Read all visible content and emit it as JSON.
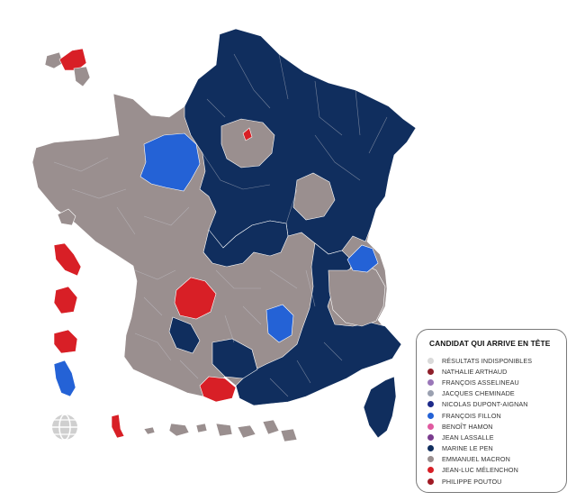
{
  "colors": {
    "macron": "#9a8f8f",
    "le_pen": "#102e5e",
    "fillon": "#2462d6",
    "melenchon": "#d81f26",
    "globe": "#cfcfcf",
    "legend_border": "#7a7a7a"
  },
  "legend": {
    "title": "CANDIDAT QUI ARRIVE EN TÊTE",
    "items": [
      {
        "label": "RÉSULTATS INDISPONIBLES",
        "color": "#d9d9d9"
      },
      {
        "label": "NATHALIE ARTHAUD",
        "color": "#8e1f2a"
      },
      {
        "label": "FRANÇOIS ASSELINEAU",
        "color": "#9a77b8"
      },
      {
        "label": "JACQUES CHEMINADE",
        "color": "#9aa0b0"
      },
      {
        "label": "NICOLAS DUPONT-AIGNAN",
        "color": "#1d2a8a"
      },
      {
        "label": "FRANÇOIS FILLON",
        "color": "#2462d6"
      },
      {
        "label": "BENOÎT HAMON",
        "color": "#e05aa0"
      },
      {
        "label": "JEAN LASSALLE",
        "color": "#7a3c8e"
      },
      {
        "label": "MARINE LE PEN",
        "color": "#102e5e"
      },
      {
        "label": "EMMANUEL MACRON",
        "color": "#9a8f8f"
      },
      {
        "label": "JEAN-LUC MÉLENCHON",
        "color": "#d81f26"
      },
      {
        "label": "PHILIPPE POUTOU",
        "color": "#a01a24"
      }
    ]
  },
  "icons": {
    "world": "globe-icon"
  }
}
